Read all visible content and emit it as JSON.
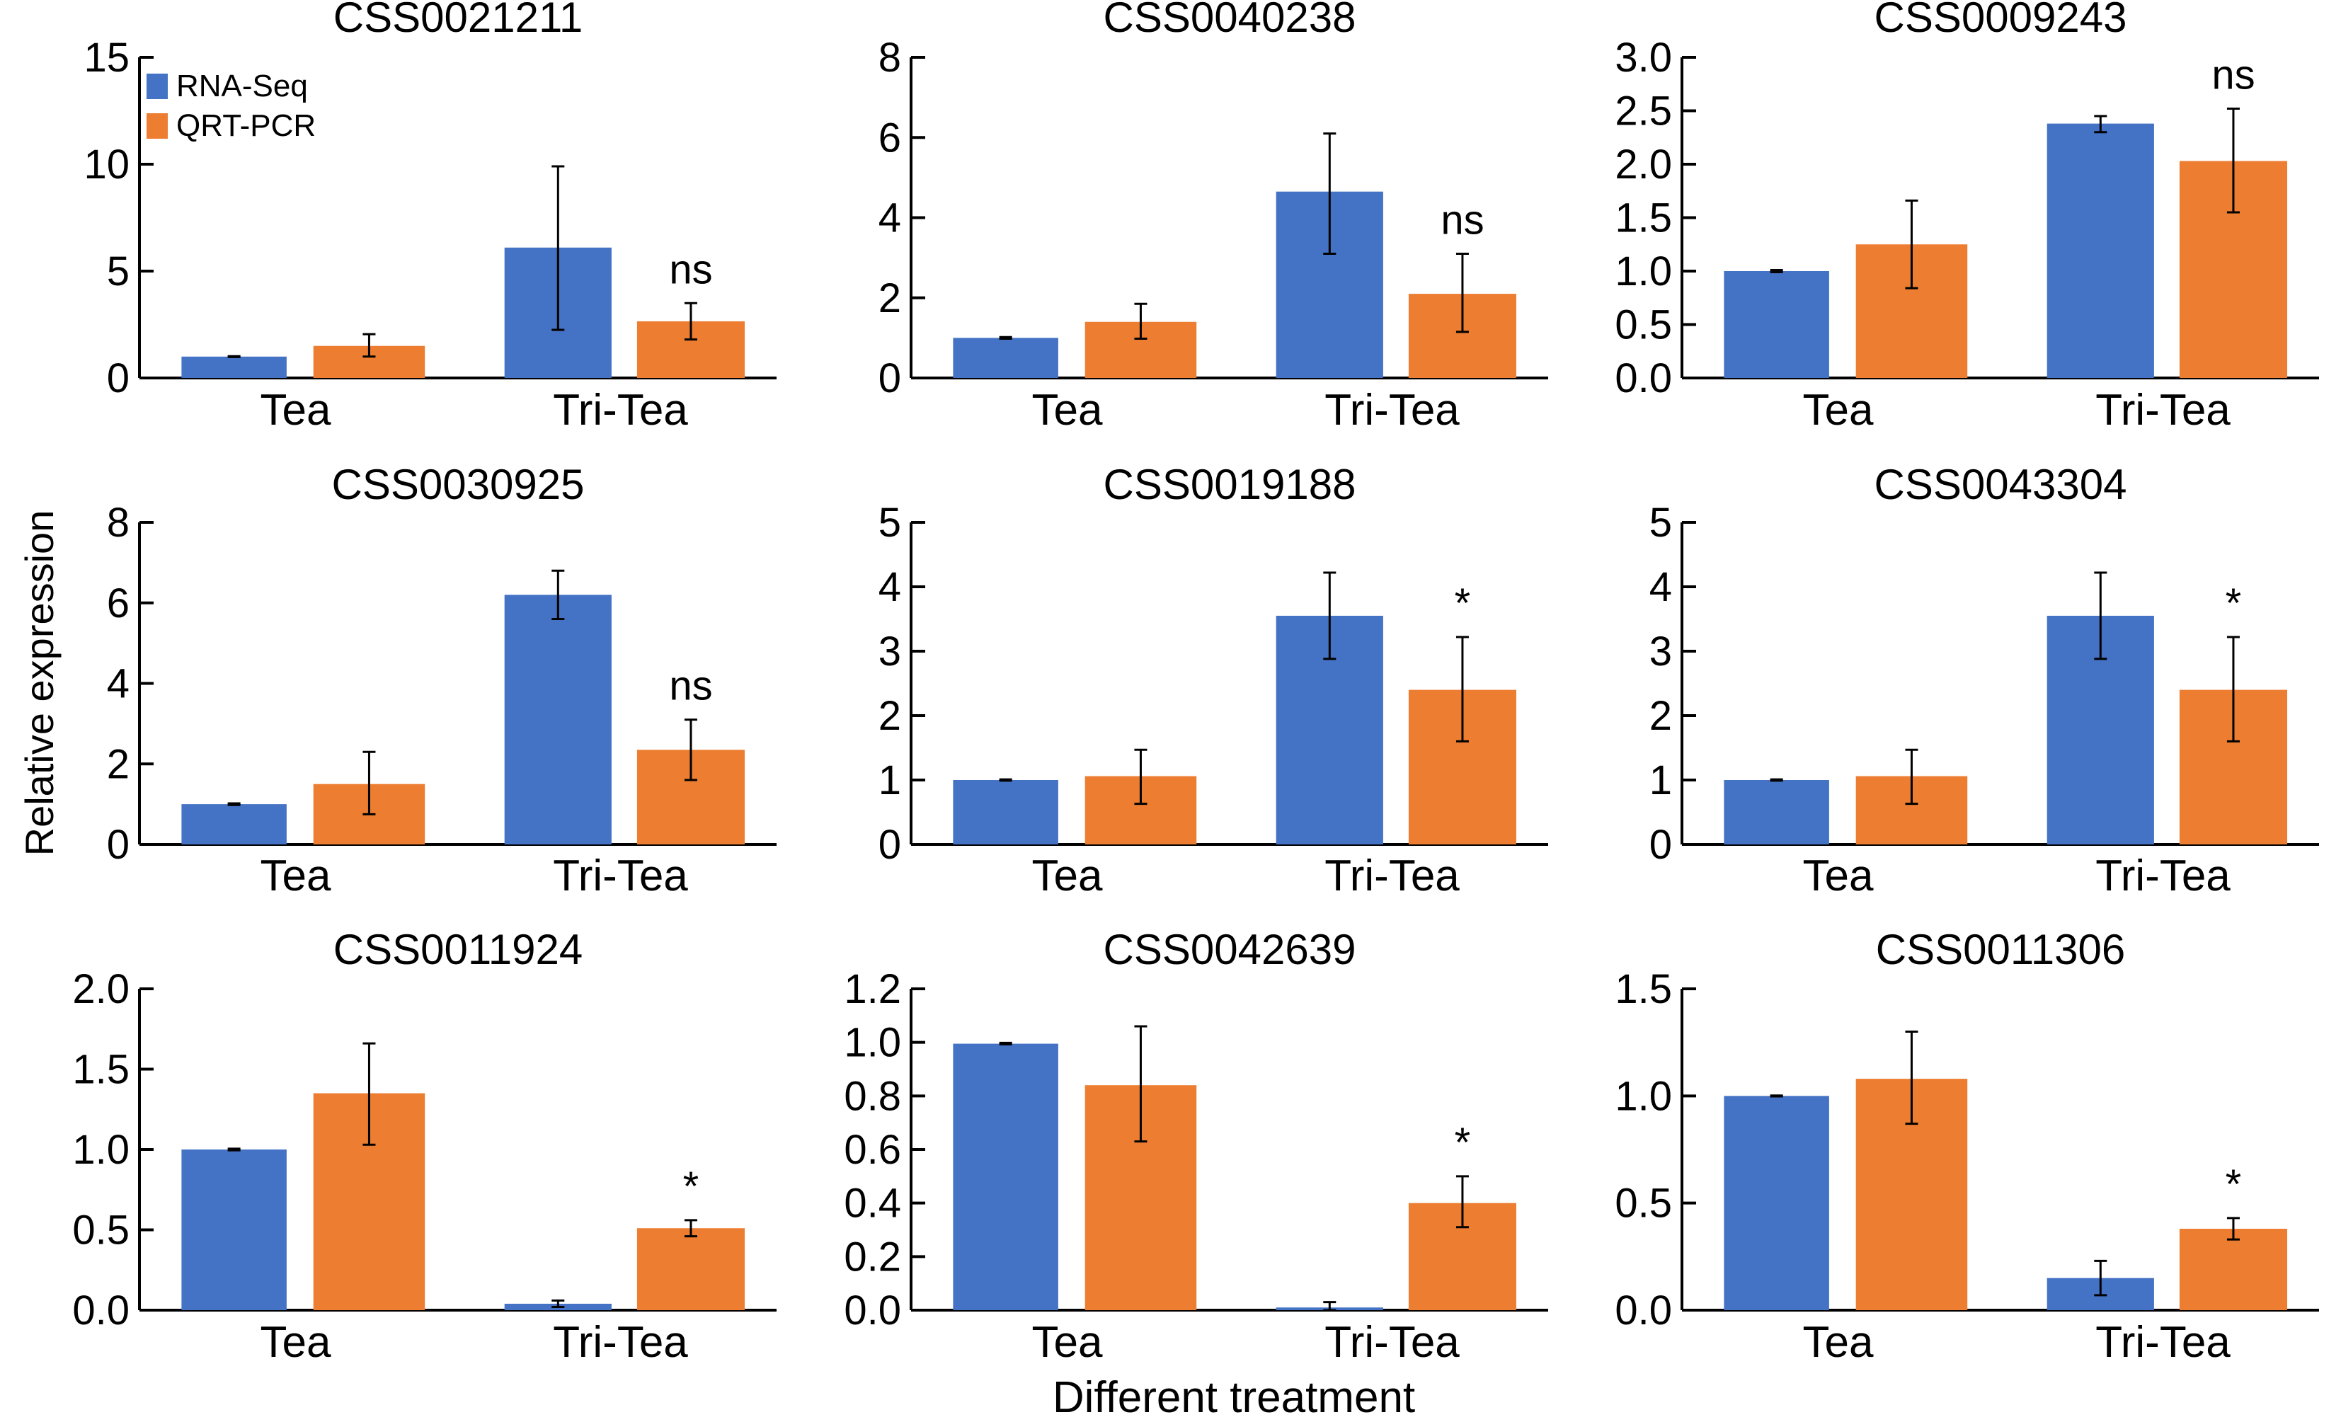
{
  "chart_data": {
    "type": "bar",
    "layout": "3x3 grid",
    "ylabel": "Relative expression",
    "xlabel": "Different treatment",
    "categories": [
      "Tea",
      "Tri-Tea"
    ],
    "legend": {
      "placement": "top-left (first panel)",
      "entries": [
        {
          "name": "RNA-Seq",
          "color": "#4472c4"
        },
        {
          "name": "QRT-PCR",
          "color": "#ed7d31"
        }
      ]
    },
    "panels": [
      {
        "title": "CSS0021211",
        "ylim": [
          0,
          15
        ],
        "yticks": [
          "0",
          "5",
          "10",
          "15"
        ],
        "ytick_values": [
          0,
          5,
          10,
          15
        ],
        "series": [
          {
            "name": "RNA-Seq",
            "values": [
              1.0,
              6.1
            ],
            "err_low": [
              0.98,
              2.25
            ],
            "err_high": [
              1.02,
              9.9
            ]
          },
          {
            "name": "QRT-PCR",
            "values": [
              1.5,
              2.65
            ],
            "err_low": [
              1.0,
              1.8
            ],
            "err_high": [
              2.05,
              3.5
            ]
          }
        ],
        "annotation": "ns"
      },
      {
        "title": "CSS0040238",
        "ylim": [
          0,
          8
        ],
        "yticks": [
          "0",
          "2",
          "4",
          "6",
          "8"
        ],
        "ytick_values": [
          0,
          2,
          4,
          6,
          8
        ],
        "series": [
          {
            "name": "RNA-Seq",
            "values": [
              1.0,
              4.65
            ],
            "err_low": [
              0.98,
              3.1
            ],
            "err_high": [
              1.02,
              6.1
            ]
          },
          {
            "name": "QRT-PCR",
            "values": [
              1.4,
              2.1
            ],
            "err_low": [
              0.98,
              1.15
            ],
            "err_high": [
              1.85,
              3.1
            ]
          }
        ],
        "annotation": "ns"
      },
      {
        "title": "CSS0009243",
        "ylim": [
          0,
          3
        ],
        "yticks": [
          "0.0",
          "0.5",
          "1.0",
          "1.5",
          "2.0",
          "2.5",
          "3.0"
        ],
        "ytick_values": [
          0,
          0.5,
          1,
          1.5,
          2,
          2.5,
          3
        ],
        "series": [
          {
            "name": "RNA-Seq",
            "values": [
              1.0,
              2.38
            ],
            "err_low": [
              0.99,
              2.3
            ],
            "err_high": [
              1.01,
              2.45
            ]
          },
          {
            "name": "QRT-PCR",
            "values": [
              1.25,
              2.03
            ],
            "err_low": [
              0.84,
              1.55
            ],
            "err_high": [
              1.66,
              2.52
            ]
          }
        ],
        "annotation": "ns"
      },
      {
        "title": "CSS0030925",
        "ylim": [
          0,
          8
        ],
        "yticks": [
          "0",
          "2",
          "4",
          "6",
          "8"
        ],
        "ytick_values": [
          0,
          2,
          4,
          6,
          8
        ],
        "series": [
          {
            "name": "RNA-Seq",
            "values": [
              1.0,
              6.2
            ],
            "err_low": [
              0.98,
              5.6
            ],
            "err_high": [
              1.02,
              6.8
            ]
          },
          {
            "name": "QRT-PCR",
            "values": [
              1.5,
              2.35
            ],
            "err_low": [
              0.75,
              1.6
            ],
            "err_high": [
              2.3,
              3.1
            ]
          }
        ],
        "annotation": "ns"
      },
      {
        "title": "CSS0019188",
        "ylim": [
          0,
          5
        ],
        "yticks": [
          "0",
          "1",
          "2",
          "3",
          "4",
          "5"
        ],
        "ytick_values": [
          0,
          1,
          2,
          3,
          4,
          5
        ],
        "series": [
          {
            "name": "RNA-Seq",
            "values": [
              1.0,
              3.55
            ],
            "err_low": [
              0.99,
              2.88
            ],
            "err_high": [
              1.01,
              4.22
            ]
          },
          {
            "name": "QRT-PCR",
            "values": [
              1.06,
              2.4
            ],
            "err_low": [
              0.63,
              1.6
            ],
            "err_high": [
              1.47,
              3.22
            ]
          }
        ],
        "annotation": "*"
      },
      {
        "title": "CSS0043304",
        "ylim": [
          0,
          5
        ],
        "yticks": [
          "0",
          "1",
          "2",
          "3",
          "4",
          "5"
        ],
        "ytick_values": [
          0,
          1,
          2,
          3,
          4,
          5
        ],
        "series": [
          {
            "name": "RNA-Seq",
            "values": [
              1.0,
              3.55
            ],
            "err_low": [
              0.99,
              2.88
            ],
            "err_high": [
              1.01,
              4.22
            ]
          },
          {
            "name": "QRT-PCR",
            "values": [
              1.06,
              2.4
            ],
            "err_low": [
              0.63,
              1.6
            ],
            "err_high": [
              1.47,
              3.22
            ]
          }
        ],
        "annotation": "*"
      },
      {
        "title": "CSS0011924",
        "ylim": [
          0,
          2
        ],
        "yticks": [
          "0.0",
          "0.5",
          "1.0",
          "1.5",
          "2.0"
        ],
        "ytick_values": [
          0,
          0.5,
          1,
          1.5,
          2
        ],
        "series": [
          {
            "name": "RNA-Seq",
            "values": [
              1.0,
              0.04
            ],
            "err_low": [
              0.995,
              0.02
            ],
            "err_high": [
              1.005,
              0.06
            ]
          },
          {
            "name": "QRT-PCR",
            "values": [
              1.35,
              0.51
            ],
            "err_low": [
              1.03,
              0.46
            ],
            "err_high": [
              1.66,
              0.56
            ]
          }
        ],
        "annotation": "*"
      },
      {
        "title": "CSS0042639",
        "ylim": [
          0,
          1.2
        ],
        "yticks": [
          "0.0",
          "0.2",
          "0.4",
          "0.6",
          "0.8",
          "1.0",
          "1.2"
        ],
        "ytick_values": [
          0,
          0.2,
          0.4,
          0.6,
          0.8,
          1.0,
          1.2
        ],
        "series": [
          {
            "name": "RNA-Seq",
            "values": [
              0.995,
              0.01
            ],
            "err_low": [
              0.993,
              0.0
            ],
            "err_high": [
              0.998,
              0.03
            ]
          },
          {
            "name": "QRT-PCR",
            "values": [
              0.84,
              0.4
            ],
            "err_low": [
              0.63,
              0.31
            ],
            "err_high": [
              1.06,
              0.5
            ]
          }
        ],
        "annotation": "*"
      },
      {
        "title": "CSS0011306",
        "ylim": [
          0,
          1.5
        ],
        "yticks": [
          "0.0",
          "0.5",
          "1.0",
          "1.5"
        ],
        "ytick_values": [
          0,
          0.5,
          1,
          1.5
        ],
        "series": [
          {
            "name": "RNA-Seq",
            "values": [
              1.0,
              0.15
            ],
            "err_low": [
              0.998,
              0.07
            ],
            "err_high": [
              1.002,
              0.23
            ]
          },
          {
            "name": "QRT-PCR",
            "values": [
              1.08,
              0.38
            ],
            "err_low": [
              0.87,
              0.33
            ],
            "err_high": [
              1.3,
              0.43
            ]
          }
        ],
        "annotation": "*"
      }
    ]
  }
}
